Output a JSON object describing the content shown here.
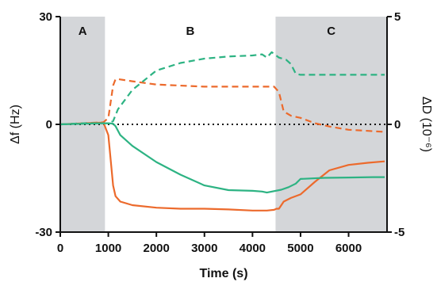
{
  "chart_data": {
    "type": "line",
    "title": "",
    "xlabel": "Time (s)",
    "ylabel_left": "Δf (Hz)",
    "ylabel_right": "ΔD (10⁻⁶)",
    "xlim": [
      0,
      6800
    ],
    "ylim_left": [
      -30,
      30
    ],
    "ylim_right": [
      -5,
      5
    ],
    "x_ticks": [
      0,
      1000,
      2000,
      3000,
      4000,
      5000,
      6000
    ],
    "y_ticks_left": [
      30,
      0,
      -30
    ],
    "y_ticks_right": [
      5,
      0,
      -5
    ],
    "regions": [
      {
        "label": "A",
        "x": [
          0,
          930
        ],
        "shaded": true
      },
      {
        "label": "B",
        "x": [
          930,
          4480
        ],
        "shaded": false
      },
      {
        "label": "C",
        "x": [
          4480,
          6800
        ],
        "shaded": true
      }
    ],
    "zero_line": "dotted",
    "series": [
      {
        "quantity": "Δf",
        "axis": "left",
        "color": "#ec6a2c",
        "style": "solid",
        "x": [
          0,
          500,
          900,
          1000,
          1050,
          1100,
          1150,
          1250,
          1500,
          2000,
          2500,
          3000,
          3500,
          4000,
          4300,
          4450,
          4500,
          4550,
          4650,
          4800,
          5000,
          5300,
          5600,
          6000,
          6400,
          6750
        ],
        "y": [
          0,
          0.3,
          0.5,
          -3,
          -10,
          -17,
          -20,
          -21.5,
          -22.5,
          -23.2,
          -23.5,
          -23.5,
          -23.7,
          -24,
          -24,
          -23.8,
          -23.5,
          -23.5,
          -21.5,
          -20.5,
          -19.5,
          -16,
          -12.8,
          -11.3,
          -10.7,
          -10.3
        ]
      },
      {
        "quantity": "ΔD",
        "axis": "right",
        "color": "#ec6a2c",
        "style": "dashed",
        "x": [
          0,
          500,
          900,
          1000,
          1100,
          1150,
          1200,
          1500,
          2000,
          3000,
          3500,
          4000,
          4450,
          4550,
          4650,
          4800,
          5000,
          5300,
          5600,
          6000,
          6400,
          6750
        ],
        "y": [
          0,
          0.05,
          0.1,
          0.3,
          1.8,
          2.1,
          2.1,
          2.0,
          1.85,
          1.75,
          1.75,
          1.75,
          1.75,
          1.5,
          0.6,
          0.4,
          0.3,
          0.05,
          -0.1,
          -0.25,
          -0.3,
          -0.35
        ]
      },
      {
        "quantity": "Δf",
        "axis": "left",
        "color": "#2db383",
        "style": "solid",
        "x": [
          0,
          500,
          900,
          1000,
          1100,
          1150,
          1250,
          1500,
          2000,
          2500,
          3000,
          3500,
          4000,
          4200,
          4300,
          4600,
          4750,
          4900,
          5000,
          5500,
          6000,
          6500,
          6750
        ],
        "y": [
          0,
          0.2,
          0.3,
          0.3,
          0.2,
          -0.5,
          -3,
          -6,
          -10.5,
          -14,
          -17,
          -18.3,
          -18.5,
          -18.7,
          -19,
          -18.2,
          -17.5,
          -16.5,
          -15.2,
          -14.9,
          -14.8,
          -14.7,
          -14.7
        ]
      },
      {
        "quantity": "ΔD",
        "axis": "right",
        "color": "#2db383",
        "style": "dashed",
        "x": [
          0,
          500,
          900,
          1000,
          1100,
          1200,
          1500,
          2000,
          2500,
          3000,
          3500,
          4000,
          4200,
          4300,
          4400,
          4550,
          4700,
          4800,
          4900,
          5000,
          5500,
          6000,
          6500,
          6750
        ],
        "y": [
          0,
          0.05,
          0.05,
          0.05,
          0.15,
          0.7,
          1.6,
          2.5,
          2.85,
          3.05,
          3.15,
          3.2,
          3.25,
          3.1,
          3.35,
          3.1,
          3.0,
          2.8,
          2.35,
          2.3,
          2.3,
          2.3,
          2.3,
          2.3
        ]
      }
    ]
  }
}
